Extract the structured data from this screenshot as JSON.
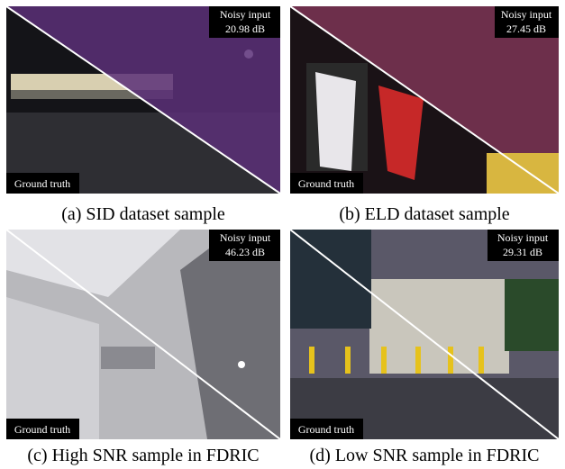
{
  "panels": [
    {
      "caption": "(a) SID dataset sample",
      "noisy_label": "Noisy input",
      "psnr": "20.98 dB",
      "gt_label": "Ground truth"
    },
    {
      "caption": "(b) ELD dataset sample",
      "noisy_label": "Noisy input",
      "psnr": "27.45 dB",
      "gt_label": "Ground truth"
    },
    {
      "caption": "(c) High SNR sample in FDRIC",
      "noisy_label": "Noisy input",
      "psnr": "46.23 dB",
      "gt_label": "Ground truth"
    },
    {
      "caption": "(d) Low SNR sample in FDRIC",
      "noisy_label": "Noisy input",
      "psnr": "29.31 dB",
      "gt_label": "Ground truth"
    }
  ]
}
